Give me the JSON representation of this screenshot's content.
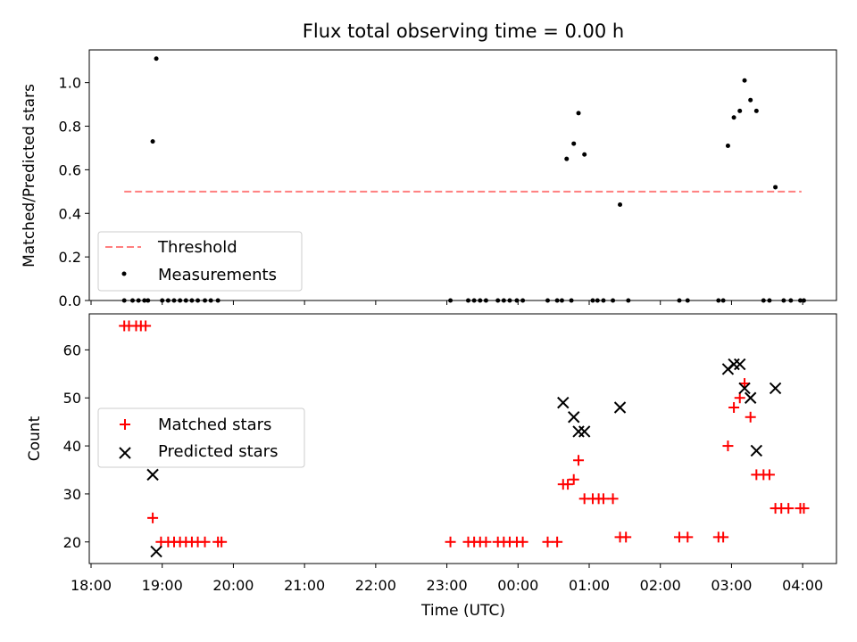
{
  "chart_data": [
    {
      "type": "scatter",
      "title": "Flux total observing time = 0.00 h",
      "ylabel": "Matched/Predicted stars",
      "xlabel": "",
      "xlim": [
        "18:00",
        "04:30"
      ],
      "ylim": [
        0,
        1.15
      ],
      "yticks": [
        "0.0",
        "0.2",
        "0.4",
        "0.6",
        "0.8",
        "1.0"
      ],
      "legend_position": "lower-left",
      "threshold": {
        "name": "Threshold",
        "value": 0.5,
        "x_start": "18:28",
        "x_end": "03:59",
        "color": "#ff7f7f",
        "style": "dashed"
      },
      "series": [
        {
          "name": "Measurements",
          "color": "#000000",
          "marker": "dot",
          "points": [
            [
              "18:28",
              0
            ],
            [
              "18:35",
              0
            ],
            [
              "18:40",
              0
            ],
            [
              "18:45",
              0
            ],
            [
              "18:48",
              0
            ],
            [
              "18:52",
              0.73
            ],
            [
              "18:55",
              1.11
            ],
            [
              "19:00",
              0
            ],
            [
              "19:05",
              0
            ],
            [
              "19:10",
              0
            ],
            [
              "19:15",
              0
            ],
            [
              "19:20",
              0
            ],
            [
              "19:25",
              0
            ],
            [
              "19:30",
              0
            ],
            [
              "19:36",
              0
            ],
            [
              "19:41",
              0
            ],
            [
              "19:47",
              0
            ],
            [
              "23:03",
              0
            ],
            [
              "23:18",
              0
            ],
            [
              "23:23",
              0
            ],
            [
              "23:28",
              0
            ],
            [
              "23:33",
              0
            ],
            [
              "23:43",
              0
            ],
            [
              "23:48",
              0
            ],
            [
              "23:53",
              0
            ],
            [
              "23:59",
              0
            ],
            [
              "00:04",
              0
            ],
            [
              "00:25",
              0
            ],
            [
              "00:33",
              0
            ],
            [
              "00:37",
              0
            ],
            [
              "00:41",
              0.65
            ],
            [
              "00:45",
              0
            ],
            [
              "00:47",
              0.72
            ],
            [
              "00:51",
              0.86
            ],
            [
              "00:56",
              0.67
            ],
            [
              "01:03",
              0
            ],
            [
              "01:07",
              0
            ],
            [
              "01:12",
              0
            ],
            [
              "01:20",
              0
            ],
            [
              "01:26",
              0.44
            ],
            [
              "01:33",
              0
            ],
            [
              "02:16",
              0
            ],
            [
              "02:23",
              0
            ],
            [
              "02:49",
              0
            ],
            [
              "02:53",
              0
            ],
            [
              "02:57",
              0.71
            ],
            [
              "03:02",
              0.84
            ],
            [
              "03:07",
              0.87
            ],
            [
              "03:11",
              1.01
            ],
            [
              "03:16",
              0.92
            ],
            [
              "03:21",
              0.87
            ],
            [
              "03:27",
              0
            ],
            [
              "03:32",
              0
            ],
            [
              "03:37",
              0.52
            ],
            [
              "03:44",
              0
            ],
            [
              "03:50",
              0
            ],
            [
              "03:58",
              0
            ],
            [
              "04:01",
              0
            ]
          ]
        }
      ]
    },
    {
      "type": "scatter",
      "title": "",
      "xlabel": "Time (UTC)",
      "ylabel": "Count",
      "xlim": [
        "18:00",
        "04:30"
      ],
      "ylim": [
        15.5,
        67.5
      ],
      "xticks": [
        "18:00",
        "19:00",
        "20:00",
        "21:00",
        "22:00",
        "23:00",
        "00:00",
        "01:00",
        "02:00",
        "03:00",
        "04:00"
      ],
      "yticks": [
        "20",
        "30",
        "40",
        "50",
        "60"
      ],
      "legend_position": "center-left",
      "series": [
        {
          "name": "Matched stars",
          "color": "#ff0000",
          "marker": "plus",
          "points": [
            [
              "18:28",
              65
            ],
            [
              "18:32",
              65
            ],
            [
              "18:38",
              65
            ],
            [
              "18:42",
              65
            ],
            [
              "18:46",
              65
            ],
            [
              "18:52",
              25
            ],
            [
              "18:59",
              20
            ],
            [
              "19:05",
              20
            ],
            [
              "19:10",
              20
            ],
            [
              "19:15",
              20
            ],
            [
              "19:20",
              20
            ],
            [
              "19:25",
              20
            ],
            [
              "19:30",
              20
            ],
            [
              "19:36",
              20
            ],
            [
              "19:47",
              20
            ],
            [
              "19:50",
              20
            ],
            [
              "23:03",
              20
            ],
            [
              "23:18",
              20
            ],
            [
              "23:23",
              20
            ],
            [
              "23:28",
              20
            ],
            [
              "23:33",
              20
            ],
            [
              "23:43",
              20
            ],
            [
              "23:48",
              20
            ],
            [
              "23:53",
              20
            ],
            [
              "23:59",
              20
            ],
            [
              "00:04",
              20
            ],
            [
              "00:25",
              20
            ],
            [
              "00:33",
              20
            ],
            [
              "00:38",
              32
            ],
            [
              "00:42",
              32
            ],
            [
              "00:47",
              33
            ],
            [
              "00:51",
              37
            ],
            [
              "00:56",
              29
            ],
            [
              "01:03",
              29
            ],
            [
              "01:08",
              29
            ],
            [
              "01:12",
              29
            ],
            [
              "01:20",
              29
            ],
            [
              "01:26",
              21
            ],
            [
              "01:31",
              21
            ],
            [
              "02:16",
              21
            ],
            [
              "02:23",
              21
            ],
            [
              "02:49",
              21
            ],
            [
              "02:53",
              21
            ],
            [
              "02:57",
              40
            ],
            [
              "03:02",
              48
            ],
            [
              "03:07",
              50
            ],
            [
              "03:11",
              53
            ],
            [
              "03:16",
              46
            ],
            [
              "03:21",
              34
            ],
            [
              "03:27",
              34
            ],
            [
              "03:32",
              34
            ],
            [
              "03:37",
              27
            ],
            [
              "03:42",
              27
            ],
            [
              "03:48",
              27
            ],
            [
              "03:58",
              27
            ],
            [
              "04:01",
              27
            ]
          ]
        },
        {
          "name": "Predicted stars",
          "color": "#000000",
          "marker": "x",
          "points": [
            [
              "18:52",
              34
            ],
            [
              "18:55",
              18
            ],
            [
              "00:38",
              49
            ],
            [
              "00:47",
              46
            ],
            [
              "00:51",
              43
            ],
            [
              "00:56",
              43
            ],
            [
              "01:26",
              48
            ],
            [
              "02:57",
              56
            ],
            [
              "03:02",
              57
            ],
            [
              "03:07",
              57
            ],
            [
              "03:11",
              52
            ],
            [
              "03:16",
              50
            ],
            [
              "03:21",
              39
            ],
            [
              "03:37",
              52
            ]
          ]
        }
      ]
    }
  ]
}
